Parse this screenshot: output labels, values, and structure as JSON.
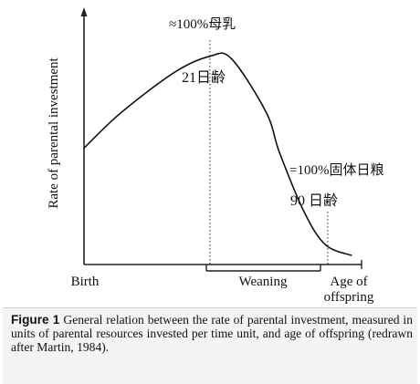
{
  "chart_data": {
    "type": "line",
    "ylabel": "Rate of parental investment",
    "x_tick_labels": [
      "Birth",
      "Age of",
      "offspring"
    ],
    "x": [
      0,
      0.14,
      0.34,
      0.47,
      0.55,
      0.68,
      0.73,
      0.82,
      0.9,
      1.0
    ],
    "y": [
      0.52,
      0.68,
      0.86,
      0.93,
      0.92,
      0.68,
      0.5,
      0.24,
      0.09,
      0.04
    ],
    "xlim": [
      0,
      1.05
    ],
    "ylim": [
      0,
      1.1
    ],
    "grid": false,
    "marker_lines": [
      {
        "x": 0.47,
        "label": "21日齢"
      },
      {
        "x": 0.91,
        "label": "90 日齢"
      }
    ],
    "weaning_bracket": {
      "start": 0.47,
      "end": 0.91,
      "label": "Weaning"
    },
    "annotations": {
      "peak": "≈100%母乳",
      "peak_day": "21日齢",
      "solid": "=100%固体日粮",
      "solid_day": "90 日齢"
    }
  },
  "caption": {
    "label": "Figure 1",
    "text": "General relation between the rate of parental investment, measured in units of parental resources invested per time unit, and age of offspring (redrawn after Martin, 1984)."
  }
}
